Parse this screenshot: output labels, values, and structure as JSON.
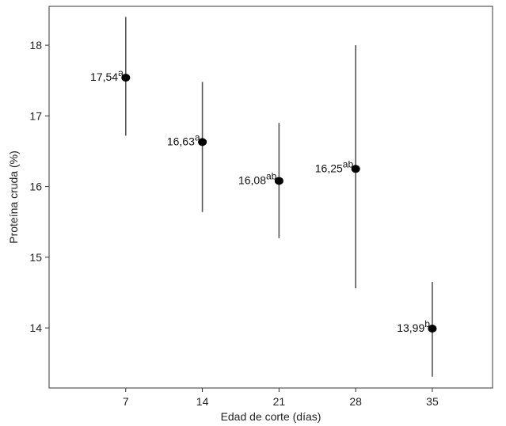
{
  "chart_data": {
    "type": "scatter",
    "xlabel": "Edad de corte (días)",
    "ylabel": "Proteína cruda (%)",
    "x_ticks": [
      7,
      14,
      21,
      28,
      35
    ],
    "y_ticks": [
      14,
      15,
      16,
      17,
      18
    ],
    "xlim": [
      0,
      40.5
    ],
    "ylim": [
      13.15,
      18.55
    ],
    "grid": false,
    "legend": "none",
    "points": [
      {
        "x": 7,
        "y": 17.54,
        "lower": 16.72,
        "upper": 18.4,
        "label": "17,54",
        "sup": "a"
      },
      {
        "x": 14,
        "y": 16.63,
        "lower": 15.64,
        "upper": 17.48,
        "label": "16,63",
        "sup": "a"
      },
      {
        "x": 21,
        "y": 16.08,
        "lower": 15.27,
        "upper": 16.9,
        "label": "16,08",
        "sup": "ab"
      },
      {
        "x": 28,
        "y": 16.25,
        "lower": 14.56,
        "upper": 18.0,
        "label": "16,25",
        "sup": "ab"
      },
      {
        "x": 35,
        "y": 13.99,
        "lower": 13.31,
        "upper": 14.65,
        "label": "13,99",
        "sup": "b"
      }
    ],
    "colors": {
      "marker": "#000000",
      "errorbar": "#555555",
      "axis": "#333333"
    }
  }
}
